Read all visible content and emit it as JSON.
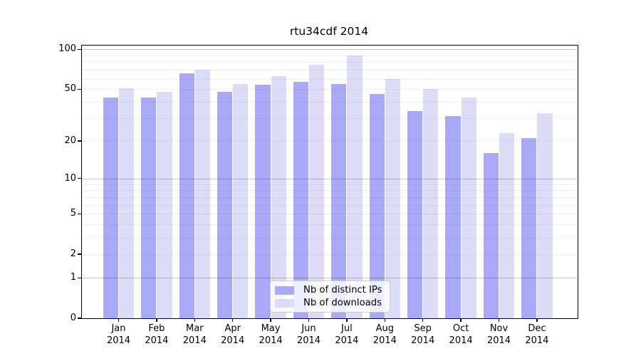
{
  "title": "rtu34cdf 2014",
  "colors": {
    "bar_distinct_ips": "#a9a9f8",
    "bar_downloads": "#dcdcf8",
    "axis": "#000000",
    "legend_border": "#cccccc",
    "legend_background": "#ffffff"
  },
  "chart_data": {
    "type": "bar",
    "title": "rtu34cdf 2014",
    "months": [
      "Jan",
      "Feb",
      "Mar",
      "Apr",
      "May",
      "Jun",
      "Jul",
      "Aug",
      "Sep",
      "Oct",
      "Nov",
      "Dec"
    ],
    "year": "2014",
    "series": [
      {
        "name": "Nb of distinct IPs",
        "color": "#a9a9f8",
        "values": [
          43,
          43,
          66,
          48,
          54,
          57,
          55,
          46,
          34,
          31,
          16,
          21
        ]
      },
      {
        "name": "Nb of downloads",
        "color": "#dcdcf8",
        "values": [
          51,
          48,
          70,
          55,
          63,
          77,
          90,
          60,
          50,
          43,
          23,
          33
        ]
      }
    ],
    "y_scale": "log1p",
    "ylim": [
      0,
      107
    ],
    "y_ticks": [
      0,
      1,
      2,
      5,
      10,
      20,
      50,
      100
    ],
    "grid_minor_values": [
      2,
      3,
      4,
      5,
      6,
      7,
      8,
      9,
      20,
      30,
      40,
      50,
      60,
      70,
      80,
      90
    ],
    "grid_major_values": [
      1,
      10,
      100
    ],
    "xlabel": "",
    "ylabel": "",
    "legend_position": "lower center"
  }
}
